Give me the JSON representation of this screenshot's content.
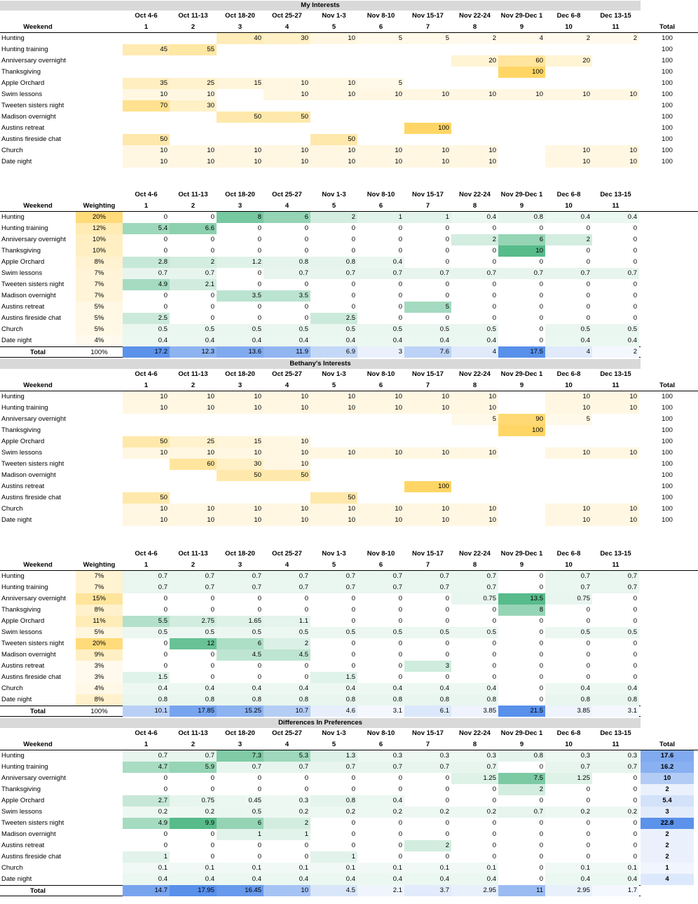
{
  "weeks": [
    "Oct 4-6",
    "Oct 11-13",
    "Oct 18-20",
    "Oct 25-27",
    "Nov 1-3",
    "Nov 8-10",
    "Nov 15-17",
    "Nov 22-24",
    "Nov 29-Dec 1",
    "Dec 6-8",
    "Dec 13-15"
  ],
  "week_numbers": [
    "1",
    "2",
    "3",
    "4",
    "5",
    "6",
    "7",
    "8",
    "9",
    "10",
    "11"
  ],
  "labels": {
    "weekend": "Weekend",
    "weighting": "Weighting",
    "total_col": "Total",
    "total_row": "Total"
  },
  "activities": [
    "Hunting",
    "Hunting training",
    "Anniversary overnight",
    "Thanksgiving",
    "Apple Orchard",
    "Swim lessons",
    "Tweeten sisters night",
    "Madison overnight",
    "Austins retreat",
    "Austins fireside chat",
    "Church",
    "Date night"
  ],
  "colors": {
    "title_bg": "#d9d9d9",
    "yellow_max": "#ffd666",
    "green_max": "#57bb8a",
    "blue_max": "#4a86e8"
  },
  "tables": [
    {
      "id": "my-interests",
      "title": "My Interests",
      "type": "interest",
      "rows": [
        [
          "",
          "",
          "40",
          "30",
          "10",
          "5",
          "5",
          "2",
          "4",
          "2",
          "2"
        ],
        [
          "45",
          "55",
          "",
          "",
          "",
          "",
          "",
          "",
          "",
          "",
          ""
        ],
        [
          "",
          "",
          "",
          "",
          "",
          "",
          "",
          "20",
          "60",
          "20",
          ""
        ],
        [
          "",
          "",
          "",
          "",
          "",
          "",
          "",
          "",
          "100",
          "",
          ""
        ],
        [
          "35",
          "25",
          "15",
          "10",
          "10",
          "5",
          "",
          "",
          "",
          "",
          ""
        ],
        [
          "10",
          "10",
          "",
          "10",
          "10",
          "10",
          "10",
          "10",
          "10",
          "10",
          "10"
        ],
        [
          "70",
          "30",
          "",
          "",
          "",
          "",
          "",
          "",
          "",
          "",
          ""
        ],
        [
          "",
          "",
          "50",
          "50",
          "",
          "",
          "",
          "",
          "",
          "",
          ""
        ],
        [
          "",
          "",
          "",
          "",
          "",
          "",
          "100",
          "",
          "",
          "",
          ""
        ],
        [
          "50",
          "",
          "",
          "",
          "50",
          "",
          "",
          "",
          "",
          "",
          ""
        ],
        [
          "10",
          "10",
          "10",
          "10",
          "10",
          "10",
          "10",
          "10",
          "",
          "10",
          "10"
        ],
        [
          "10",
          "10",
          "10",
          "10",
          "10",
          "10",
          "10",
          "10",
          "",
          "10",
          "10"
        ]
      ],
      "totals": [
        "100",
        "100",
        "100",
        "100",
        "100",
        "100",
        "100",
        "100",
        "100",
        "100",
        "100",
        "100"
      ]
    },
    {
      "id": "my-weighted",
      "title": "",
      "type": "weighted",
      "weights": [
        "20%",
        "12%",
        "10%",
        "10%",
        "8%",
        "7%",
        "7%",
        "7%",
        "5%",
        "5%",
        "5%",
        "4%"
      ],
      "weight_total": "100%",
      "rows": [
        [
          "0",
          "0",
          "8",
          "6",
          "2",
          "1",
          "1",
          "0.4",
          "0.8",
          "0.4",
          "0.4"
        ],
        [
          "5.4",
          "6.6",
          "0",
          "0",
          "0",
          "0",
          "0",
          "0",
          "0",
          "0",
          "0"
        ],
        [
          "0",
          "0",
          "0",
          "0",
          "0",
          "0",
          "0",
          "2",
          "6",
          "2",
          "0"
        ],
        [
          "0",
          "0",
          "0",
          "0",
          "0",
          "0",
          "0",
          "0",
          "10",
          "0",
          "0"
        ],
        [
          "2.8",
          "2",
          "1.2",
          "0.8",
          "0.8",
          "0.4",
          "0",
          "0",
          "0",
          "0",
          "0"
        ],
        [
          "0.7",
          "0.7",
          "0",
          "0.7",
          "0.7",
          "0.7",
          "0.7",
          "0.7",
          "0.7",
          "0.7",
          "0.7"
        ],
        [
          "4.9",
          "2.1",
          "0",
          "0",
          "0",
          "0",
          "0",
          "0",
          "0",
          "0",
          "0"
        ],
        [
          "0",
          "0",
          "3.5",
          "3.5",
          "0",
          "0",
          "0",
          "0",
          "0",
          "0",
          "0"
        ],
        [
          "0",
          "0",
          "0",
          "0",
          "0",
          "0",
          "5",
          "0",
          "0",
          "0",
          "0"
        ],
        [
          "2.5",
          "0",
          "0",
          "0",
          "2.5",
          "0",
          "0",
          "0",
          "0",
          "0",
          "0"
        ],
        [
          "0.5",
          "0.5",
          "0.5",
          "0.5",
          "0.5",
          "0.5",
          "0.5",
          "0.5",
          "0",
          "0.5",
          "0.5"
        ],
        [
          "0.4",
          "0.4",
          "0.4",
          "0.4",
          "0.4",
          "0.4",
          "0.4",
          "0.4",
          "0",
          "0.4",
          "0.4"
        ]
      ],
      "col_totals": [
        "17.2",
        "12.3",
        "13.6",
        "11.9",
        "6.9",
        "3",
        "7.6",
        "4",
        "17.5",
        "4",
        "2"
      ]
    },
    {
      "id": "bethany-interests",
      "title": "Bethany's Interests",
      "type": "interest",
      "rows": [
        [
          "10",
          "10",
          "10",
          "10",
          "10",
          "10",
          "10",
          "10",
          "",
          "10",
          "10"
        ],
        [
          "10",
          "10",
          "10",
          "10",
          "10",
          "10",
          "10",
          "10",
          "",
          "10",
          "10"
        ],
        [
          "",
          "",
          "",
          "",
          "",
          "",
          "",
          "5",
          "90",
          "5",
          ""
        ],
        [
          "",
          "",
          "",
          "",
          "",
          "",
          "",
          "",
          "100",
          "",
          ""
        ],
        [
          "50",
          "25",
          "15",
          "10",
          "",
          "",
          "",
          "",
          "",
          "",
          ""
        ],
        [
          "10",
          "10",
          "10",
          "10",
          "10",
          "10",
          "10",
          "10",
          "",
          "10",
          "10"
        ],
        [
          "",
          "60",
          "30",
          "10",
          "",
          "",
          "",
          "",
          "",
          "",
          ""
        ],
        [
          "",
          "",
          "50",
          "50",
          "",
          "",
          "",
          "",
          "",
          "",
          ""
        ],
        [
          "",
          "",
          "",
          "",
          "",
          "",
          "100",
          "",
          "",
          "",
          ""
        ],
        [
          "50",
          "",
          "",
          "",
          "50",
          "",
          "",
          "",
          "",
          "",
          ""
        ],
        [
          "10",
          "10",
          "10",
          "10",
          "10",
          "10",
          "10",
          "10",
          "",
          "10",
          "10"
        ],
        [
          "10",
          "10",
          "10",
          "10",
          "10",
          "10",
          "10",
          "10",
          "",
          "10",
          "10"
        ]
      ],
      "totals": [
        "100",
        "100",
        "100",
        "100",
        "100",
        "100",
        "100",
        "100",
        "100",
        "100",
        "100",
        "100"
      ]
    },
    {
      "id": "bethany-weighted",
      "title": "",
      "type": "weighted",
      "weights": [
        "7%",
        "7%",
        "15%",
        "8%",
        "11%",
        "5%",
        "20%",
        "9%",
        "3%",
        "3%",
        "4%",
        "8%"
      ],
      "weight_total": "100%",
      "rows": [
        [
          "0.7",
          "0.7",
          "0.7",
          "0.7",
          "0.7",
          "0.7",
          "0.7",
          "0.7",
          "0",
          "0.7",
          "0.7"
        ],
        [
          "0.7",
          "0.7",
          "0.7",
          "0.7",
          "0.7",
          "0.7",
          "0.7",
          "0.7",
          "0",
          "0.7",
          "0.7"
        ],
        [
          "0",
          "0",
          "0",
          "0",
          "0",
          "0",
          "0",
          "0.75",
          "13.5",
          "0.75",
          "0"
        ],
        [
          "0",
          "0",
          "0",
          "0",
          "0",
          "0",
          "0",
          "0",
          "8",
          "0",
          "0"
        ],
        [
          "5.5",
          "2.75",
          "1.65",
          "1.1",
          "0",
          "0",
          "0",
          "0",
          "0",
          "0",
          "0"
        ],
        [
          "0.5",
          "0.5",
          "0.5",
          "0.5",
          "0.5",
          "0.5",
          "0.5",
          "0.5",
          "0",
          "0.5",
          "0.5"
        ],
        [
          "0",
          "12",
          "6",
          "2",
          "0",
          "0",
          "0",
          "0",
          "0",
          "0",
          "0"
        ],
        [
          "0",
          "0",
          "4.5",
          "4.5",
          "0",
          "0",
          "0",
          "0",
          "0",
          "0",
          "0"
        ],
        [
          "0",
          "0",
          "0",
          "0",
          "0",
          "0",
          "3",
          "0",
          "0",
          "0",
          "0"
        ],
        [
          "1.5",
          "0",
          "0",
          "0",
          "1.5",
          "0",
          "0",
          "0",
          "0",
          "0",
          "0"
        ],
        [
          "0.4",
          "0.4",
          "0.4",
          "0.4",
          "0.4",
          "0.4",
          "0.4",
          "0.4",
          "0",
          "0.4",
          "0.4"
        ],
        [
          "0.8",
          "0.8",
          "0.8",
          "0.8",
          "0.8",
          "0.8",
          "0.8",
          "0.8",
          "0",
          "0.8",
          "0.8"
        ]
      ],
      "col_totals": [
        "10.1",
        "17.85",
        "15.25",
        "10.7",
        "4.6",
        "3.1",
        "6.1",
        "3.85",
        "21.5",
        "3.85",
        "3.1"
      ]
    },
    {
      "id": "differences",
      "title": "Differences In Preferences",
      "type": "difference",
      "rows": [
        [
          "0.7",
          "0.7",
          "7.3",
          "5.3",
          "1.3",
          "0.3",
          "0.3",
          "0.3",
          "0.8",
          "0.3",
          "0.3"
        ],
        [
          "4.7",
          "5.9",
          "0.7",
          "0.7",
          "0.7",
          "0.7",
          "0.7",
          "0.7",
          "0",
          "0.7",
          "0.7"
        ],
        [
          "0",
          "0",
          "0",
          "0",
          "0",
          "0",
          "0",
          "1.25",
          "7.5",
          "1.25",
          "0"
        ],
        [
          "0",
          "0",
          "0",
          "0",
          "0",
          "0",
          "0",
          "0",
          "2",
          "0",
          "0"
        ],
        [
          "2.7",
          "0.75",
          "0.45",
          "0.3",
          "0.8",
          "0.4",
          "0",
          "0",
          "0",
          "0",
          "0"
        ],
        [
          "0.2",
          "0.2",
          "0.5",
          "0.2",
          "0.2",
          "0.2",
          "0.2",
          "0.2",
          "0.7",
          "0.2",
          "0.2"
        ],
        [
          "4.9",
          "9.9",
          "6",
          "2",
          "0",
          "0",
          "0",
          "0",
          "0",
          "0",
          "0"
        ],
        [
          "0",
          "0",
          "1",
          "1",
          "0",
          "0",
          "0",
          "0",
          "0",
          "0",
          "0"
        ],
        [
          "0",
          "0",
          "0",
          "0",
          "0",
          "0",
          "2",
          "0",
          "0",
          "0",
          "0"
        ],
        [
          "1",
          "0",
          "0",
          "0",
          "1",
          "0",
          "0",
          "0",
          "0",
          "0",
          "0"
        ],
        [
          "0.1",
          "0.1",
          "0.1",
          "0.1",
          "0.1",
          "0.1",
          "0.1",
          "0.1",
          "0",
          "0.1",
          "0.1"
        ],
        [
          "0.4",
          "0.4",
          "0.4",
          "0.4",
          "0.4",
          "0.4",
          "0.4",
          "0.4",
          "0",
          "0.4",
          "0.4"
        ]
      ],
      "totals": [
        "17.6",
        "16.2",
        "10",
        "2",
        "5.4",
        "3",
        "22.8",
        "2",
        "2",
        "2",
        "1",
        "4"
      ],
      "col_totals": [
        "14.7",
        "17.95",
        "16.45",
        "10",
        "4.5",
        "2.1",
        "3.7",
        "2.95",
        "11",
        "2.95",
        "1.7"
      ]
    }
  ]
}
